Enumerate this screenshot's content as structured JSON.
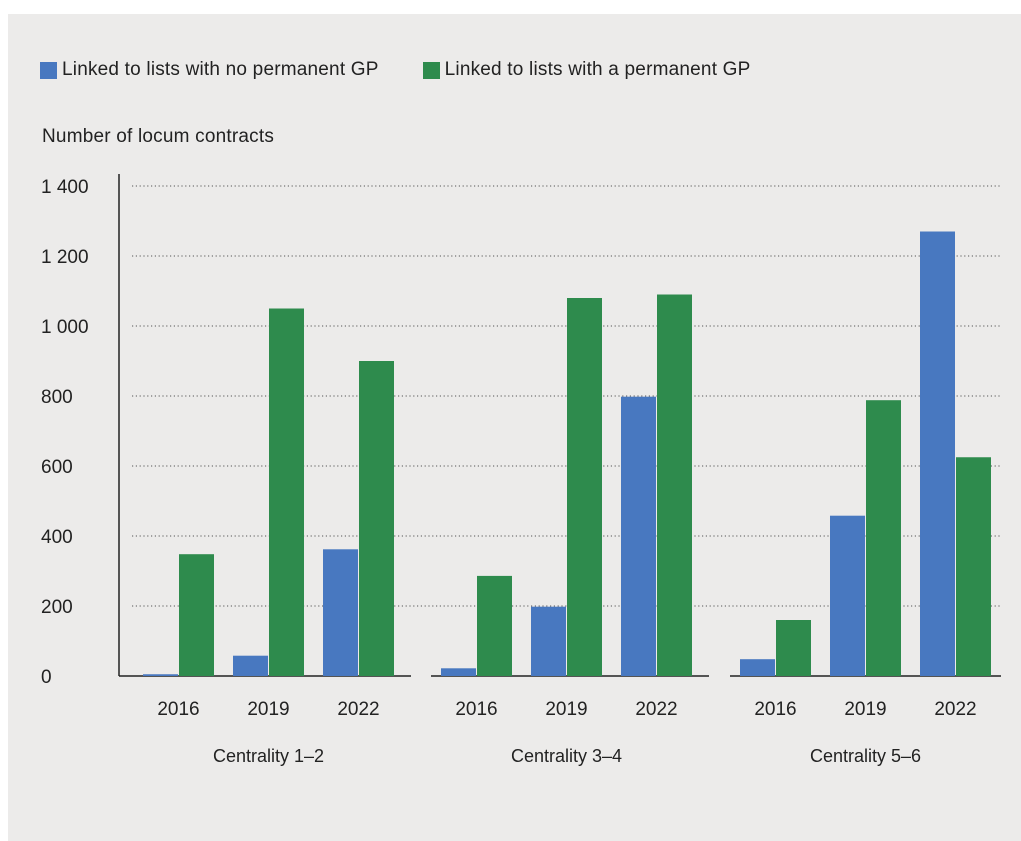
{
  "legend": [
    {
      "label": "Linked to lists with no permanent GP",
      "color": "#4878c0"
    },
    {
      "label": "Linked to lists with a permanent GP",
      "color": "#2e8b4d"
    }
  ],
  "chart_data": {
    "type": "bar",
    "title": "",
    "ylabel": "Number of locum contracts",
    "xlabel": "",
    "ylim": [
      0,
      1400
    ],
    "yticks": [
      0,
      200,
      400,
      600,
      800,
      1000,
      1200,
      1400
    ],
    "ytick_labels": [
      "0",
      "200",
      "400",
      "600",
      "800",
      "1 000",
      "1 200",
      "1 400"
    ],
    "grid": "horizontal dotted",
    "legend_position": "top-left",
    "groups": [
      {
        "label": "Centrality 1–2",
        "categories": [
          "2016",
          "2019",
          "2022"
        ],
        "series": [
          {
            "name": "Linked to lists with no permanent GP",
            "values": [
              5,
              58,
              362
            ]
          },
          {
            "name": "Linked to lists with a permanent GP",
            "values": [
              348,
              1050,
              900
            ]
          }
        ]
      },
      {
        "label": "Centrality 3–4",
        "categories": [
          "2016",
          "2019",
          "2022"
        ],
        "series": [
          {
            "name": "Linked to lists with no permanent GP",
            "values": [
              22,
              198,
              798
            ]
          },
          {
            "name": "Linked to lists with a permanent GP",
            "values": [
              286,
              1080,
              1090
            ]
          }
        ]
      },
      {
        "label": "Centrality 5–6",
        "categories": [
          "2016",
          "2019",
          "2022"
        ],
        "series": [
          {
            "name": "Linked to lists with no permanent GP",
            "values": [
              48,
              458,
              1270
            ]
          },
          {
            "name": "Linked to lists with a permanent GP",
            "values": [
              160,
              788,
              625
            ]
          }
        ]
      }
    ]
  }
}
